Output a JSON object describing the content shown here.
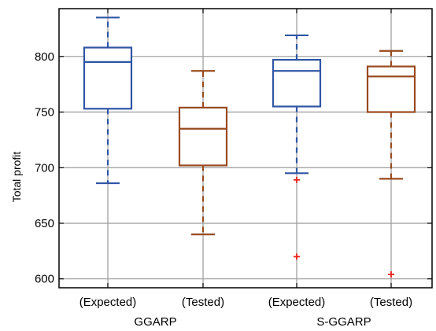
{
  "chart_data": {
    "type": "box",
    "ylabel": "Total profit",
    "ylim": [
      592,
      843
    ],
    "yticks": [
      600,
      650,
      700,
      750,
      800
    ],
    "grid": true,
    "colors": {
      "expected": "#2f55a4",
      "tested": "#994a1f",
      "outlier": "#e8231c"
    },
    "boxes": [
      {
        "label": "(Expected)",
        "group": "GGARP",
        "series": "expected",
        "whisker_low": 686,
        "q1": 753,
        "median": 795,
        "q3": 808,
        "whisker_high": 835,
        "outliers": []
      },
      {
        "label": "(Tested)",
        "group": "GGARP",
        "series": "tested",
        "whisker_low": 640,
        "q1": 702,
        "median": 735,
        "q3": 754,
        "whisker_high": 787,
        "outliers": []
      },
      {
        "label": "(Expected)",
        "group": "S-GGARP",
        "series": "expected",
        "whisker_low": 695,
        "q1": 755,
        "median": 787,
        "q3": 797,
        "whisker_high": 819,
        "outliers": [
          689,
          620
        ]
      },
      {
        "label": "(Tested)",
        "group": "S-GGARP",
        "series": "tested",
        "whisker_low": 690,
        "q1": 750,
        "median": 782,
        "q3": 791,
        "whisker_high": 805,
        "outliers": [
          604
        ]
      }
    ],
    "groups": [
      "GGARP",
      "S-GGARP"
    ]
  }
}
